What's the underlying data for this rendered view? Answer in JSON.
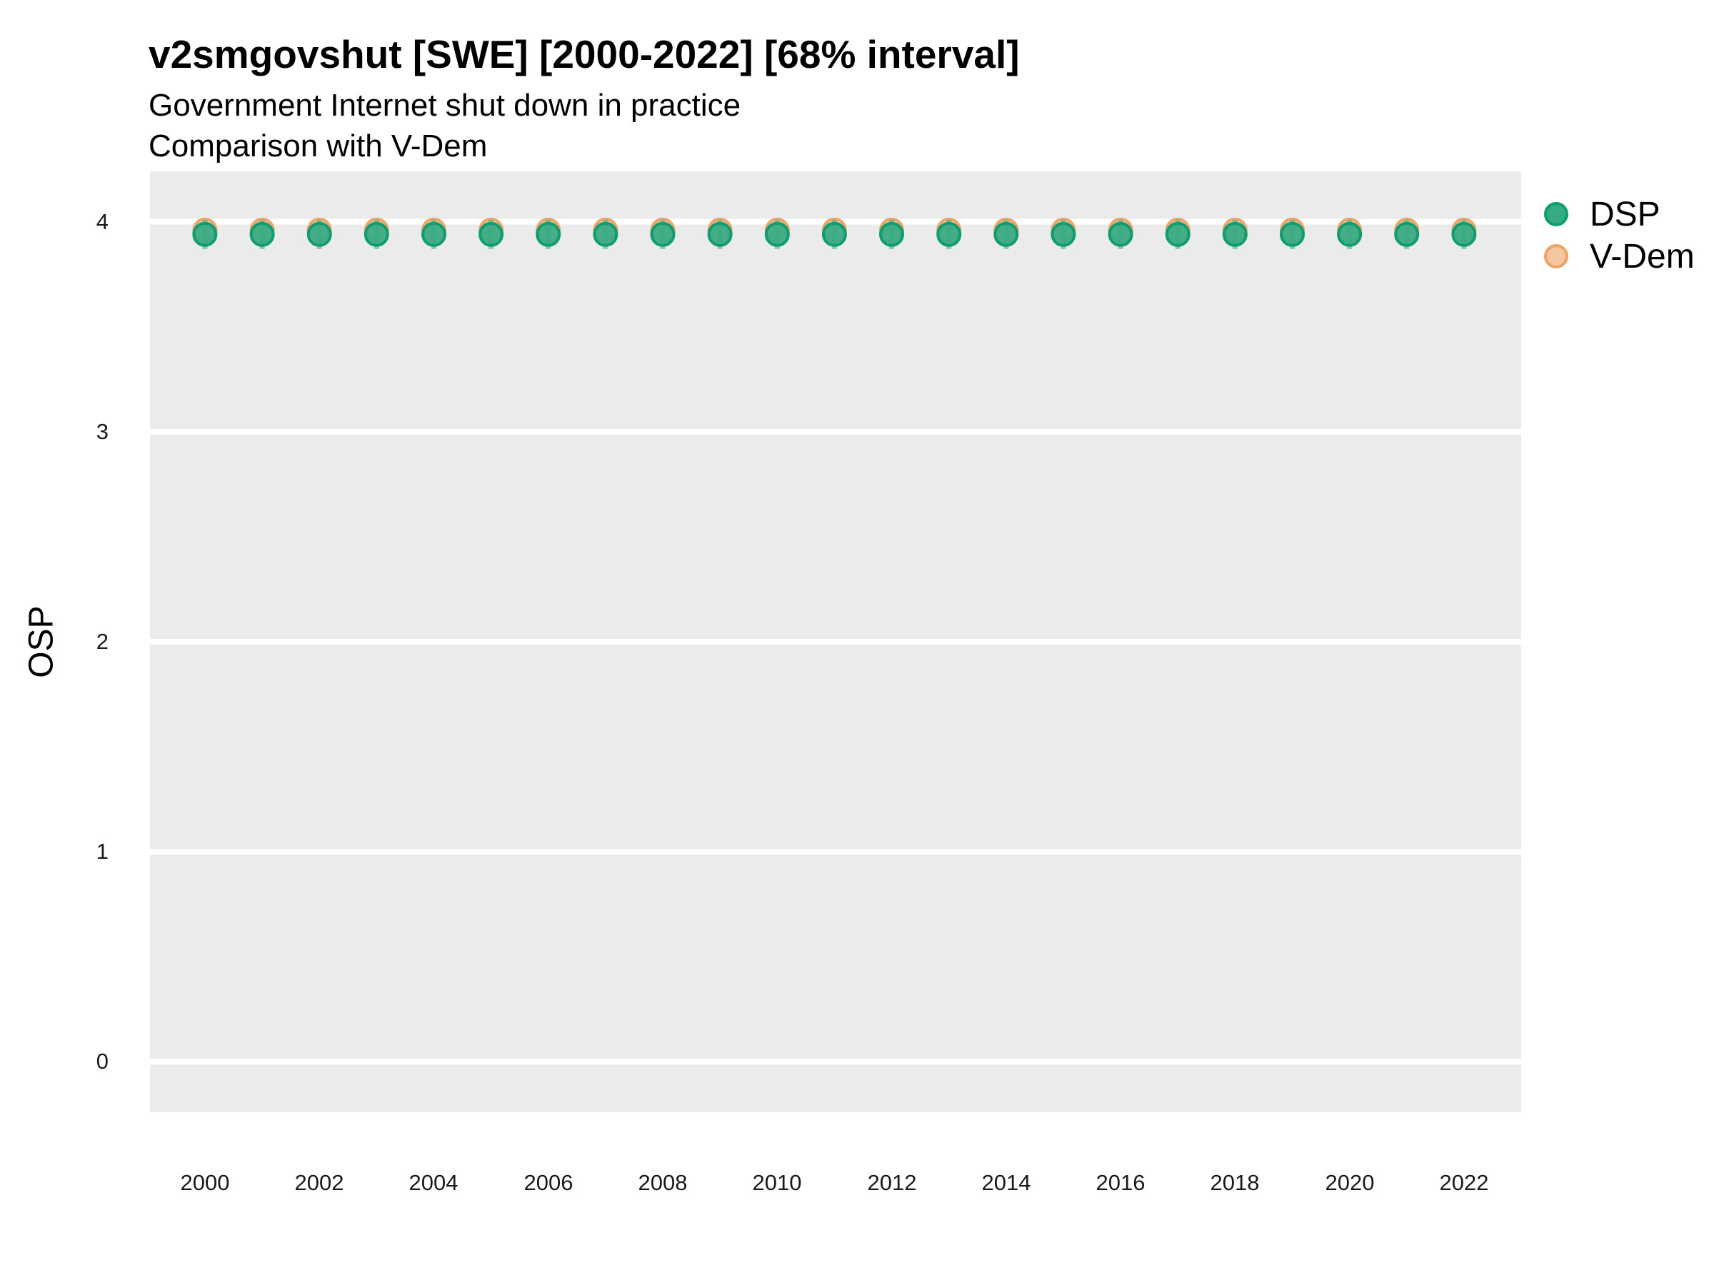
{
  "header": {
    "title": "v2smgovshut [SWE] [2000-2022] [68% interval]",
    "subtitle_line1": "Government Internet shut down in practice",
    "subtitle_line2": "Comparison with V-Dem"
  },
  "legend": {
    "position": "top-right",
    "items": [
      {
        "label": "DSP",
        "fill": "#35ab84",
        "stroke": "#0f9c71"
      },
      {
        "label": "V-Dem",
        "fill": "#f5c6a0",
        "stroke": "#eca467"
      }
    ]
  },
  "colors": {
    "panel_background": "#ebebeb",
    "gridline": "#ffffff",
    "tick_text": "#1a1a1a",
    "dsp_fill": "#35ab84",
    "dsp_stroke": "#0f9c71",
    "vdem_fill": "#f5c6a0",
    "vdem_stroke": "#eca467"
  },
  "chart_data": {
    "type": "scatter",
    "title": "v2smgovshut [SWE] [2000-2022] [68% interval]",
    "subtitle": [
      "Government Internet shut down in practice",
      "Comparison with V-Dem"
    ],
    "xlabel": "",
    "ylabel": "OSP",
    "x": [
      2000,
      2001,
      2002,
      2003,
      2004,
      2005,
      2006,
      2007,
      2008,
      2009,
      2010,
      2011,
      2012,
      2013,
      2014,
      2015,
      2016,
      2017,
      2018,
      2019,
      2020,
      2021,
      2022
    ],
    "series": [
      {
        "name": "DSP",
        "fill": "#35ab84",
        "stroke": "#0f9c71",
        "values": [
          3.94,
          3.94,
          3.94,
          3.94,
          3.94,
          3.94,
          3.94,
          3.94,
          3.94,
          3.94,
          3.94,
          3.94,
          3.94,
          3.94,
          3.94,
          3.94,
          3.94,
          3.94,
          3.94,
          3.94,
          3.94,
          3.94,
          3.94
        ],
        "interval_68_low": [
          3.87,
          3.87,
          3.87,
          3.87,
          3.87,
          3.87,
          3.87,
          3.87,
          3.87,
          3.87,
          3.87,
          3.87,
          3.87,
          3.87,
          3.87,
          3.87,
          3.87,
          3.87,
          3.87,
          3.87,
          3.87,
          3.87,
          3.87
        ],
        "interval_68_high": [
          4.01,
          4.01,
          4.01,
          4.01,
          4.01,
          4.01,
          4.01,
          4.01,
          4.01,
          4.01,
          4.01,
          4.01,
          4.01,
          4.01,
          4.01,
          4.01,
          4.01,
          4.01,
          4.01,
          4.01,
          4.01,
          4.01,
          4.01
        ]
      },
      {
        "name": "V-Dem",
        "fill": "#f5c6a0",
        "stroke": "#eca467",
        "values": [
          3.96,
          3.96,
          3.96,
          3.96,
          3.96,
          3.96,
          3.96,
          3.96,
          3.96,
          3.96,
          3.96,
          3.96,
          3.96,
          3.96,
          3.96,
          3.96,
          3.96,
          3.96,
          3.96,
          3.96,
          3.96,
          3.96,
          3.96
        ]
      }
    ],
    "axes": {
      "xticks": [
        2000,
        2002,
        2004,
        2006,
        2008,
        2010,
        2012,
        2014,
        2016,
        2018,
        2020,
        2022
      ],
      "yticks": [
        0,
        1,
        2,
        3,
        4
      ],
      "xlim": [
        1999.04,
        2023.0
      ],
      "ylim": [
        -0.24,
        4.24
      ]
    },
    "grid": "major-horizontal-only",
    "legend_position": "top-right",
    "panel_bg": "#ebebeb"
  }
}
